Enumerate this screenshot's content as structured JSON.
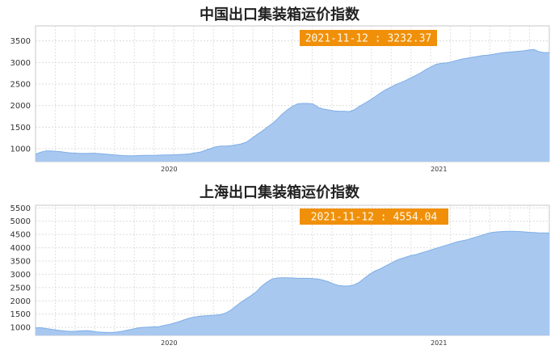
{
  "chart_data": [
    {
      "type": "area",
      "title": "中国出口集装箱运价指数",
      "readout": "2021-11-12 : 3232.37",
      "ylim": [
        700,
        3850
      ],
      "yticks": [
        1000,
        1500,
        2000,
        2500,
        3000,
        3500
      ],
      "xlim": [
        0,
        100
      ],
      "xticks": [
        {
          "x": 26.0,
          "label": "2020"
        },
        {
          "x": 78.5,
          "label": "2021"
        }
      ],
      "grid": true,
      "color": "#a8c8f0",
      "line_color": "#7eaee6",
      "x": [
        0,
        1,
        2,
        3,
        4,
        5,
        6,
        7,
        8,
        9,
        10,
        11,
        12,
        13,
        14,
        15,
        16,
        17,
        18,
        19,
        20,
        21,
        22,
        23,
        24,
        25,
        26,
        27,
        28,
        29,
        30,
        31,
        32,
        33,
        34,
        35,
        36,
        37,
        38,
        39,
        40,
        41,
        42,
        43,
        44,
        45,
        46,
        47,
        48,
        49,
        50,
        51,
        52,
        53,
        54,
        55,
        56,
        57,
        58,
        59,
        60,
        61,
        62,
        63,
        64,
        65,
        66,
        67,
        68,
        69,
        70,
        71,
        72,
        73,
        74,
        75,
        76,
        77,
        78,
        79,
        80,
        81,
        82,
        83,
        84,
        85,
        86,
        87,
        88,
        89,
        90,
        91,
        92,
        93,
        94,
        95,
        96,
        97,
        98,
        99,
        100
      ],
      "y": [
        870,
        920,
        950,
        950,
        940,
        930,
        910,
        900,
        895,
        890,
        890,
        895,
        890,
        880,
        870,
        860,
        850,
        840,
        835,
        835,
        840,
        845,
        845,
        845,
        850,
        855,
        855,
        860,
        865,
        870,
        880,
        900,
        920,
        960,
        1000,
        1040,
        1060,
        1060,
        1070,
        1090,
        1110,
        1150,
        1230,
        1320,
        1400,
        1490,
        1580,
        1680,
        1800,
        1900,
        1980,
        2040,
        2050,
        2050,
        2040,
        1960,
        1920,
        1900,
        1880,
        1870,
        1870,
        1860,
        1900,
        1980,
        2050,
        2120,
        2200,
        2280,
        2360,
        2420,
        2480,
        2530,
        2580,
        2640,
        2700,
        2760,
        2840,
        2900,
        2960,
        2980,
        2990,
        3020,
        3050,
        3080,
        3100,
        3120,
        3140,
        3160,
        3170,
        3190,
        3210,
        3230,
        3240,
        3250,
        3260,
        3270,
        3290,
        3300,
        3250,
        3230,
        3232
      ]
    },
    {
      "type": "area",
      "title": "上海出口集装箱运价指数",
      "readout": "2021-11-12 : 4554.04",
      "ylim": [
        700,
        5600
      ],
      "yticks": [
        1000,
        1500,
        2000,
        2500,
        3000,
        3500,
        4000,
        4500,
        5000,
        5500
      ],
      "xlim": [
        0,
        100
      ],
      "xticks": [
        {
          "x": 26.0,
          "label": "2020"
        },
        {
          "x": 78.5,
          "label": "2021"
        }
      ],
      "grid": true,
      "color": "#a8c8f0",
      "line_color": "#7eaee6",
      "x": [
        0,
        1,
        2,
        3,
        4,
        5,
        6,
        7,
        8,
        9,
        10,
        11,
        12,
        13,
        14,
        15,
        16,
        17,
        18,
        19,
        20,
        21,
        22,
        23,
        24,
        25,
        26,
        27,
        28,
        29,
        30,
        31,
        32,
        33,
        34,
        35,
        36,
        37,
        38,
        39,
        40,
        41,
        42,
        43,
        44,
        45,
        46,
        47,
        48,
        49,
        50,
        51,
        52,
        53,
        54,
        55,
        56,
        57,
        58,
        59,
        60,
        61,
        62,
        63,
        64,
        65,
        66,
        67,
        68,
        69,
        70,
        71,
        72,
        73,
        74,
        75,
        76,
        77,
        78,
        79,
        80,
        81,
        82,
        83,
        84,
        85,
        86,
        87,
        88,
        89,
        90,
        91,
        92,
        93,
        94,
        95,
        96,
        97,
        98,
        99,
        100
      ],
      "y": [
        980,
        990,
        960,
        930,
        900,
        880,
        860,
        850,
        860,
        870,
        880,
        860,
        830,
        820,
        810,
        810,
        830,
        860,
        900,
        940,
        980,
        1000,
        1010,
        1020,
        1030,
        1070,
        1110,
        1160,
        1220,
        1290,
        1350,
        1390,
        1420,
        1440,
        1450,
        1460,
        1480,
        1540,
        1650,
        1800,
        1950,
        2080,
        2200,
        2350,
        2550,
        2700,
        2820,
        2860,
        2870,
        2870,
        2860,
        2850,
        2850,
        2850,
        2840,
        2820,
        2780,
        2720,
        2640,
        2580,
        2560,
        2560,
        2600,
        2700,
        2850,
        3000,
        3120,
        3200,
        3300,
        3400,
        3500,
        3580,
        3640,
        3700,
        3740,
        3800,
        3860,
        3920,
        3980,
        4040,
        4100,
        4160,
        4220,
        4260,
        4300,
        4360,
        4420,
        4480,
        4540,
        4580,
        4600,
        4610,
        4620,
        4620,
        4610,
        4600,
        4580,
        4570,
        4560,
        4555,
        4554
      ]
    }
  ]
}
